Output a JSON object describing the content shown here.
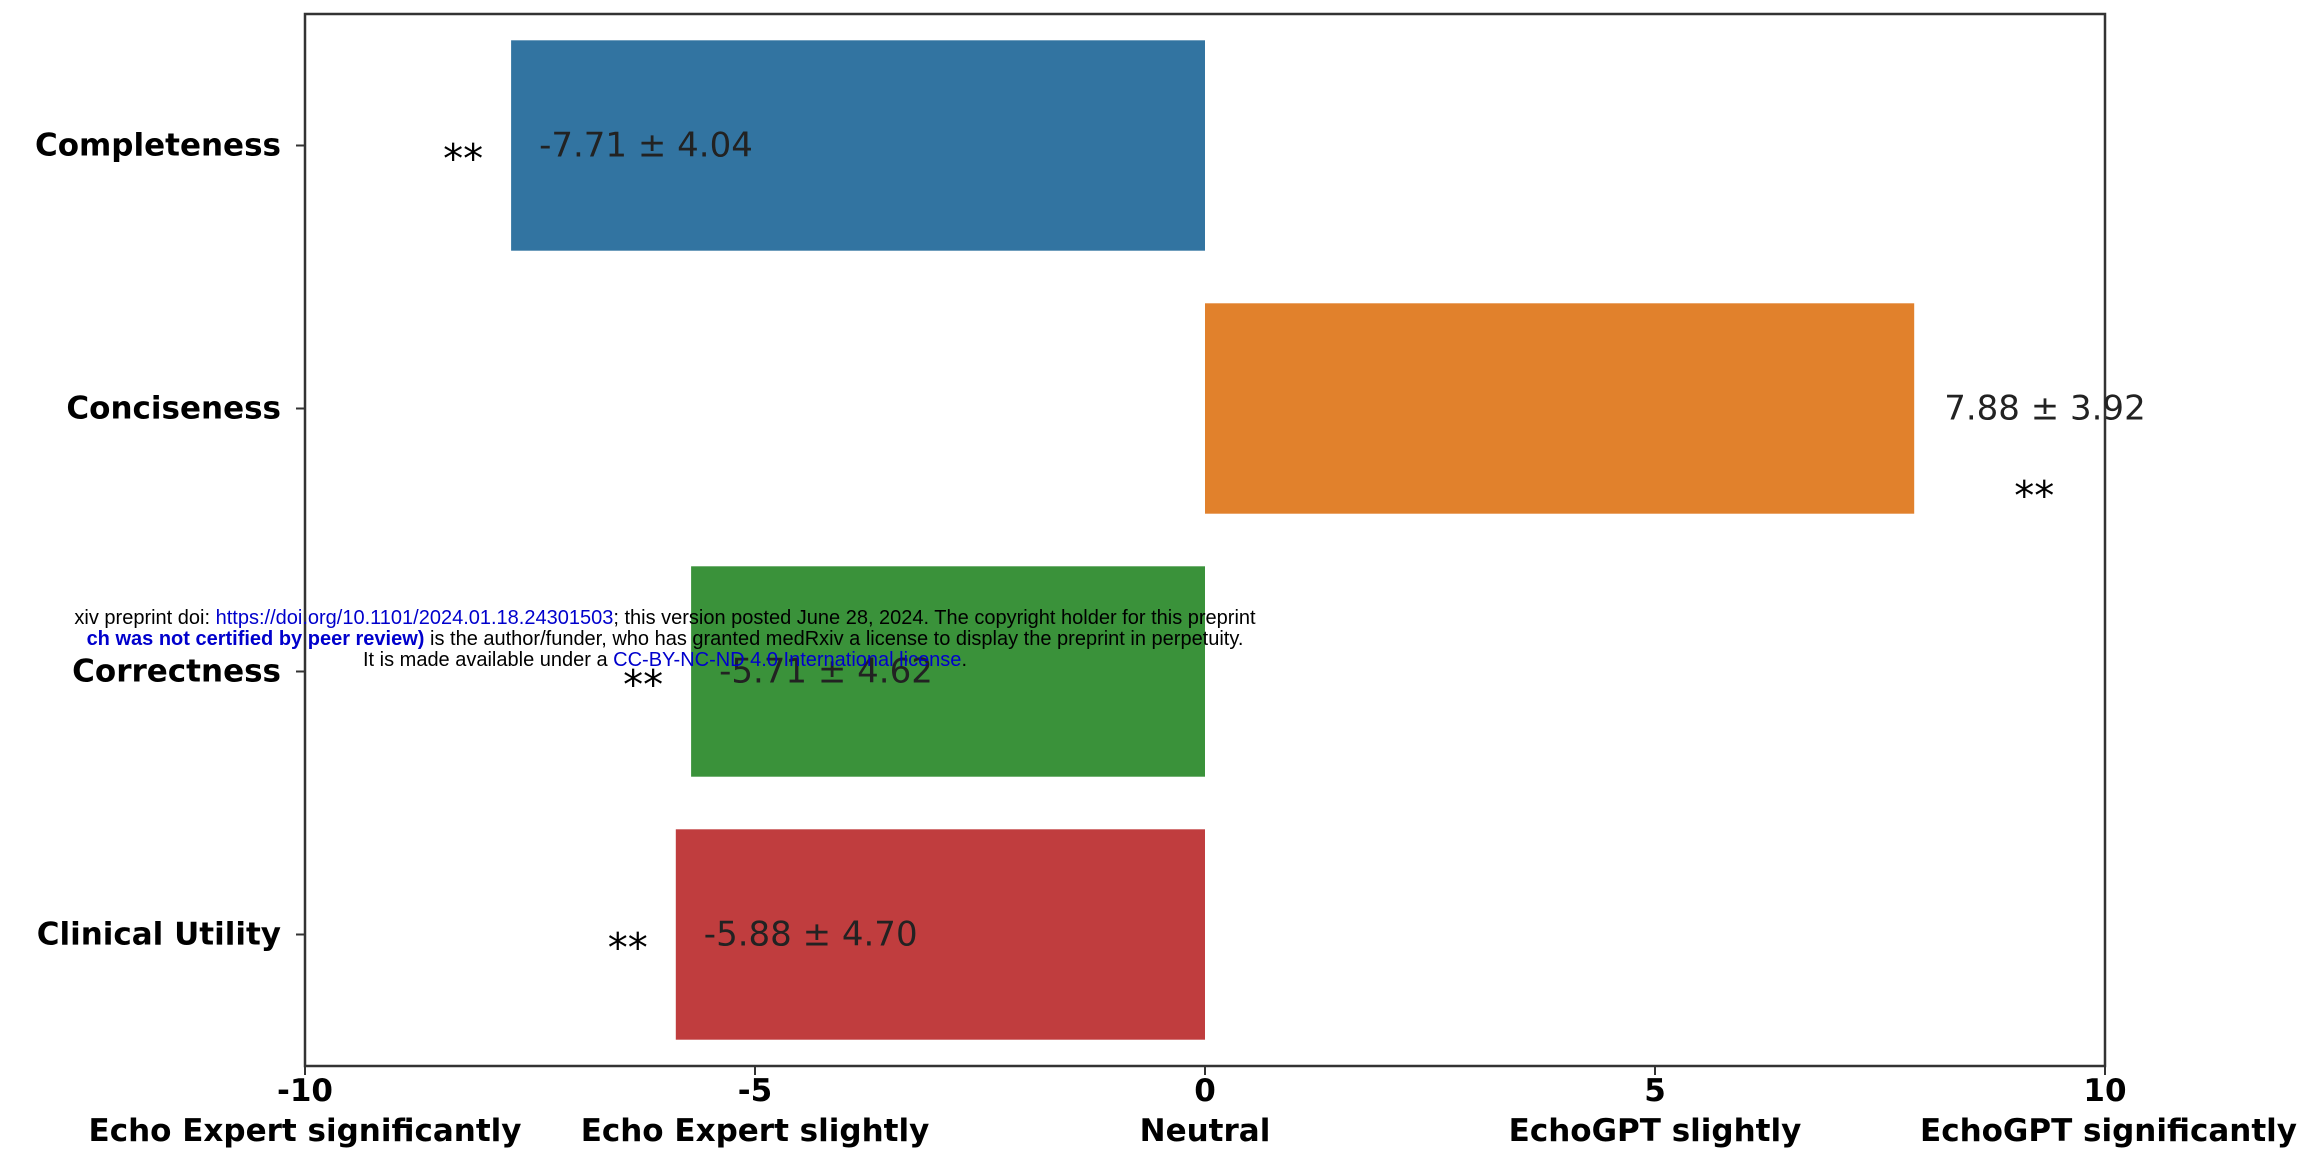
{
  "chart_data": {
    "type": "bar",
    "orientation": "horizontal",
    "categories": [
      "Completeness",
      "Conciseness",
      "Correctness",
      "Clinical Utility"
    ],
    "values": [
      -7.71,
      7.88,
      -5.71,
      -5.88
    ],
    "value_labels": [
      "-7.71 ± 4.04",
      "7.88 ± 3.92",
      "-5.71 ± 4.62",
      "-5.88 ± 4.70"
    ],
    "significance": [
      "**",
      "**",
      "**",
      "**"
    ],
    "bar_colors": [
      "#3274a1",
      "#e1812c",
      "#3a923a",
      "#c03d3e"
    ],
    "xlim": [
      -10,
      10
    ],
    "x_ticks": [
      -10,
      -5,
      0,
      5,
      10
    ],
    "x_tick_labels": [
      "-10",
      "-5",
      "0",
      "5",
      "10"
    ],
    "x_tick_descriptions": [
      "Echo Expert significantly",
      "Echo Expert slightly",
      "Neutral",
      "EchoGPT slightly",
      "EchoGPT significantly"
    ],
    "grid": false
  },
  "watermark": {
    "line1_prefix": "xiv preprint doi: ",
    "line1_link": "https://doi.org/10.1101/2024.01.18.24301503",
    "line1_suffix": "; this version posted June 28, 2024. The copyright holder for this preprint",
    "line2_bold": "ch was not certified by peer review)",
    "line2_suffix": " is the author/funder, who has granted medRxiv a license to display the preprint in perpetuity.",
    "line3_prefix": "It is made available under a ",
    "line3_link": "CC-BY-NC-ND 4.0 International license",
    "line3_suffix": "."
  }
}
